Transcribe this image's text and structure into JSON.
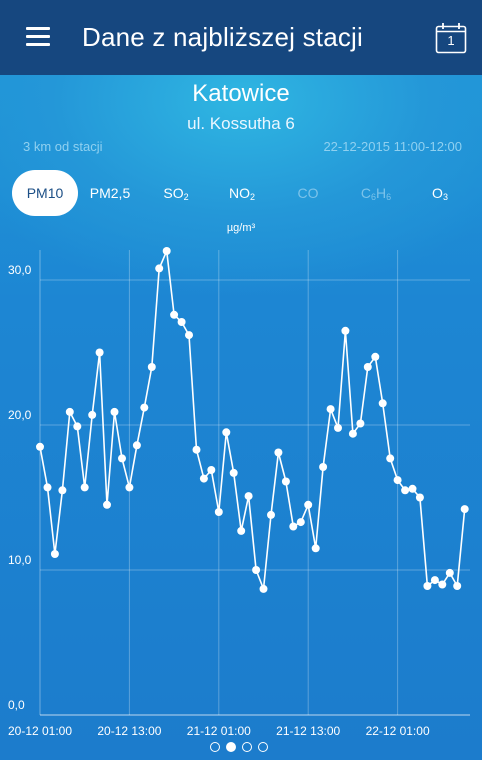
{
  "header": {
    "title": "Dane z najbliższej stacji",
    "calendar_day": "1",
    "menu_icon": "hamburger-menu-icon",
    "calendar_icon": "calendar-icon"
  },
  "station": {
    "city": "Katowice",
    "street": "ul. Kossutha 6",
    "distance": "3 km od stacji",
    "datetime": "22-12-2015 11:00-12:00"
  },
  "tabs": [
    {
      "base": "PM10",
      "sub": "",
      "tail": "",
      "state": "active"
    },
    {
      "base": "PM2,5",
      "sub": "",
      "tail": "",
      "state": "normal"
    },
    {
      "base": "SO",
      "sub": "2",
      "tail": "",
      "state": "normal"
    },
    {
      "base": "NO",
      "sub": "2",
      "tail": "",
      "state": "normal"
    },
    {
      "base": "CO",
      "sub": "",
      "tail": "",
      "state": "disabled"
    },
    {
      "base": "C",
      "sub": "6",
      "tail": "H",
      "tail_sub": "6",
      "state": "disabled"
    },
    {
      "base": "O",
      "sub": "3",
      "tail": "",
      "state": "normal"
    }
  ],
  "unit": "µg/m³",
  "pager": {
    "count": 4,
    "active_index": 1
  },
  "colors": {
    "top_bar": "#16477f",
    "background": "#1f86d2",
    "line": "#ffffff",
    "active_tab_text": "#1c4f86",
    "disabled_tab_text": "#7cc3ea"
  },
  "chart_data": {
    "type": "line",
    "ylabel": "µg/m³",
    "ylim": [
      0,
      32
    ],
    "y_ticks": [
      "0,0",
      "10,0",
      "20,0",
      "30,0"
    ],
    "x_tick_labels": [
      "20-12 01:00",
      "20-12 13:00",
      "21-12 01:00",
      "21-12 13:00",
      "22-12 01:00"
    ],
    "x_start": "2015-12-20 01:00",
    "x_step": "1h",
    "grid": true,
    "series": [
      {
        "values": [
          18.5,
          15.7,
          11.1,
          15.5,
          20.9,
          19.9,
          15.7,
          20.7,
          25.0,
          14.5,
          20.9,
          17.7,
          15.7,
          18.6,
          21.2,
          24.0,
          30.8,
          32.0,
          27.6,
          27.1,
          26.2,
          18.3,
          16.3,
          16.9,
          14.0,
          19.5,
          16.7,
          12.7,
          15.1,
          10.0,
          8.7,
          13.8,
          18.1,
          16.1,
          13.0,
          13.3,
          14.5,
          11.5,
          17.1,
          21.1,
          19.8,
          26.5,
          19.4,
          20.1,
          24.0,
          24.7,
          21.5,
          17.7,
          16.2,
          15.5,
          15.6,
          15.0,
          8.9,
          9.3,
          9.0,
          9.8,
          8.9,
          14.2
        ]
      }
    ]
  }
}
